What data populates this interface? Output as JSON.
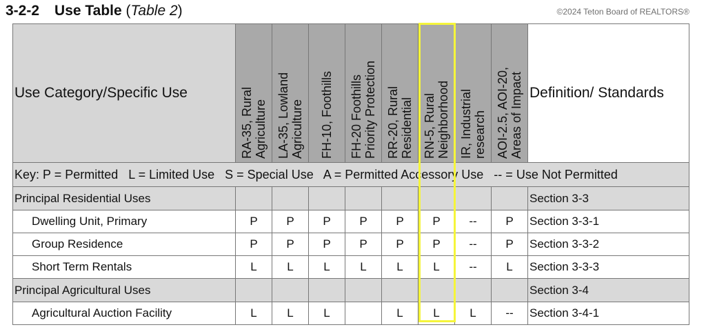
{
  "heading": {
    "number": "3-2-2",
    "title": "Use Table",
    "subtitle": "Table 2"
  },
  "columns": {
    "use": "Use Category/Specific Use",
    "zones": [
      "RA-35, Rural\nAgriculture",
      "LA-35, Lowland\nAgriculture",
      "FH-10, Foothills",
      "FH-20 Foothills\nPriority Protection",
      "RR-20, Rural\nResidential",
      "RN-5, Rural\nNeighborhood",
      "IR, Industrial\nresearch",
      "AOI-2.5, AOI-20,\nAreas of Impact"
    ],
    "definition": "Definition/ Standards"
  },
  "key": "Key: P = Permitted   L = Limited Use   S = Special Use   A = Permitted Accessory Use   -- = Use Not Permitted",
  "rows": [
    {
      "type": "category",
      "label": "Principal Residential Uses",
      "values": [
        "",
        "",
        "",
        "",
        "",
        "",
        "",
        ""
      ],
      "def": "Section 3-3"
    },
    {
      "type": "use",
      "label": "Dwelling Unit, Primary",
      "values": [
        "P",
        "P",
        "P",
        "P",
        "P",
        "P",
        "--",
        "P"
      ],
      "def": "Section 3-3-1"
    },
    {
      "type": "use",
      "label": "Group Residence",
      "values": [
        "P",
        "P",
        "P",
        "P",
        "P",
        "P",
        "--",
        "P"
      ],
      "def": "Section 3-3-2"
    },
    {
      "type": "use",
      "label": "Short Term Rentals",
      "values": [
        "L",
        "L",
        "L",
        "L",
        "L",
        "L",
        "--",
        "L"
      ],
      "def": "Section 3-3-3"
    },
    {
      "type": "category",
      "label": "Principal Agricultural Uses",
      "values": [
        "",
        "",
        "",
        "",
        "",
        "",
        "",
        ""
      ],
      "def": "Section 3-4"
    },
    {
      "type": "use",
      "label": "Agricultural Auction Facility",
      "values": [
        "L",
        "L",
        "L",
        "",
        "L",
        "L",
        "L",
        "--"
      ],
      "def": "Section 3-4-1"
    }
  ],
  "highlight_color": "#f5f53a",
  "watermark": "©2024 Teton Board of REALTORS®"
}
